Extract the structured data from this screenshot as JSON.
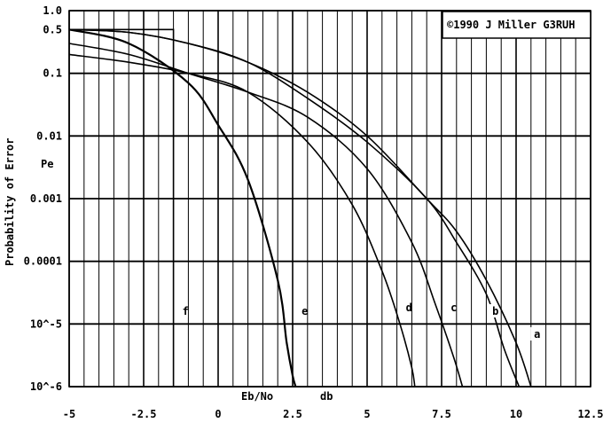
{
  "chart_data": {
    "type": "line",
    "title": "",
    "copyright": "©1990 J Miller G3RUH",
    "xlabel": "Eb/No",
    "xunit": "db",
    "ylabel": "Probability of Error",
    "ylabel_short": "Pe",
    "xlim": [
      -5,
      12.5
    ],
    "ylim": [
      1e-06,
      1.0
    ],
    "yscale": "log",
    "grid": true,
    "x_ticks": [
      "-5",
      "-2.5",
      "0",
      "2.5",
      "5",
      "7.5",
      "10",
      "12.5"
    ],
    "y_ticks": [
      "1.0",
      "0.5",
      "0.1",
      "0.01",
      "0.001",
      "0.0001",
      "10^-5",
      "10^-6"
    ],
    "series": [
      {
        "name": "a",
        "x": [
          -5,
          -3,
          -1,
          1,
          3,
          5,
          7,
          8,
          9,
          10,
          10.5
        ],
        "y": [
          0.5,
          0.45,
          0.3,
          0.15,
          0.05,
          0.01,
          0.001,
          0.0003,
          5e-05,
          5e-06,
          1e-06
        ]
      },
      {
        "name": "b",
        "x": [
          -5,
          -3,
          -1,
          1,
          3,
          5,
          7,
          8,
          9,
          9.6,
          10.1
        ],
        "y": [
          0.5,
          0.45,
          0.3,
          0.15,
          0.04,
          0.008,
          0.001,
          0.0002,
          3e-05,
          4e-06,
          1e-06
        ]
      },
      {
        "name": "c",
        "x": [
          -5,
          -3,
          -1,
          1,
          3,
          5,
          6.5,
          7.3,
          7.9,
          8.2
        ],
        "y": [
          0.3,
          0.2,
          0.1,
          0.05,
          0.02,
          0.003,
          0.0002,
          2e-05,
          3e-06,
          1e-06
        ]
      },
      {
        "name": "d",
        "x": [
          -5,
          -3,
          -1,
          1,
          3,
          4.5,
          5.5,
          6.1,
          6.5,
          6.6
        ],
        "y": [
          0.2,
          0.15,
          0.1,
          0.05,
          0.008,
          0.0008,
          7e-05,
          1e-05,
          2e-06,
          1e-06
        ]
      },
      {
        "name": "e",
        "x": [
          -5,
          -3,
          -1,
          0,
          1,
          2,
          2.3,
          2.5,
          2.6
        ],
        "y": [
          0.5,
          0.3,
          0.07,
          0.015,
          0.002,
          5e-05,
          5e-06,
          1.5e-06,
          1e-06
        ]
      },
      {
        "name": "f",
        "x": [
          -5,
          -1.5,
          -1.5
        ],
        "y": [
          0.5,
          0.5,
          1e-06
        ]
      }
    ],
    "curve_labels": [
      "a",
      "b",
      "c",
      "d",
      "e",
      "f"
    ]
  }
}
